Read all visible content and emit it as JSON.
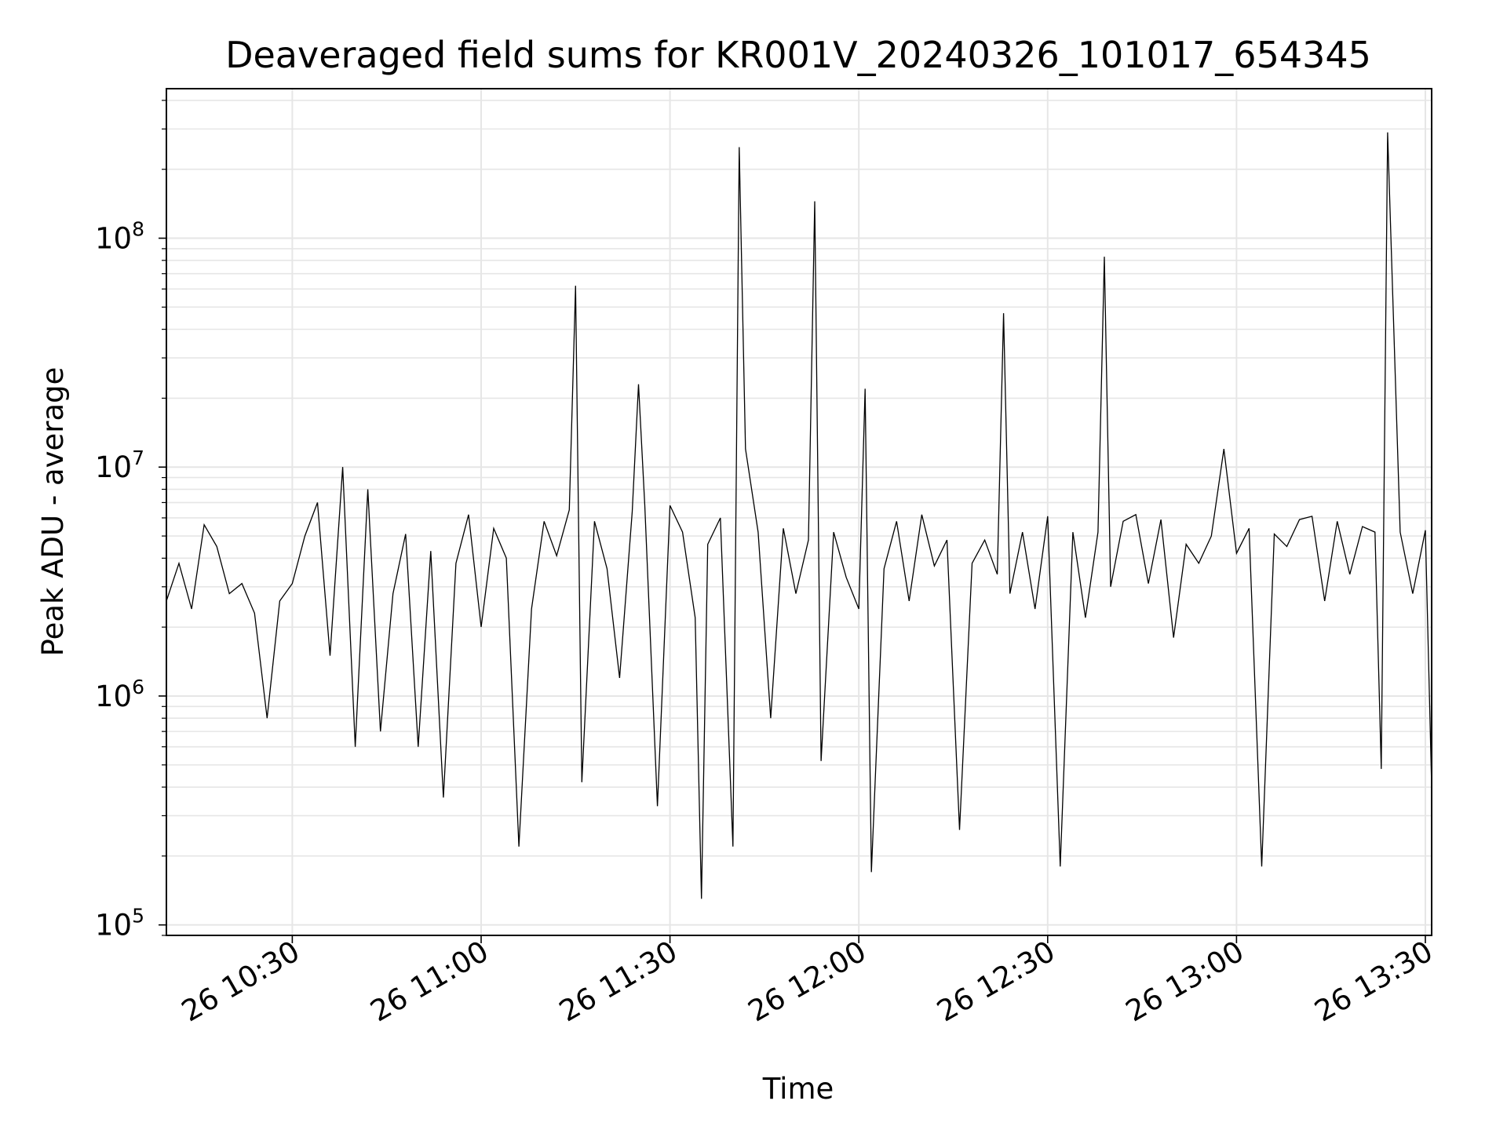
{
  "chart_data": {
    "type": "line",
    "title": "Deaveraged field sums for KR001V_20240326_101017_654345",
    "xlabel": "Time",
    "ylabel": "Peak ADU - average",
    "yscale": "log",
    "ylim": [
      90000,
      450000000
    ],
    "xlim": [
      "26 10:10",
      "26 13:31"
    ],
    "grid": true,
    "line_color": "#000000",
    "x_ticks": [
      "26 10:30",
      "26 11:00",
      "26 11:30",
      "26 12:00",
      "26 12:30",
      "26 13:00",
      "26 13:30"
    ],
    "y_ticks": [
      {
        "value": 100000,
        "base": "10",
        "exp": "5"
      },
      {
        "value": 1000000,
        "base": "10",
        "exp": "6"
      },
      {
        "value": 10000000,
        "base": "10",
        "exp": "7"
      },
      {
        "value": 100000000,
        "base": "10",
        "exp": "8"
      }
    ],
    "series": [
      {
        "x": [
          "26 10:10",
          "26 10:12",
          "26 10:14",
          "26 10:16",
          "26 10:18",
          "26 10:20",
          "26 10:22",
          "26 10:24",
          "26 10:26",
          "26 10:28",
          "26 10:30",
          "26 10:32",
          "26 10:34",
          "26 10:36",
          "26 10:38",
          "26 10:40",
          "26 10:42",
          "26 10:44",
          "26 10:46",
          "26 10:48",
          "26 10:50",
          "26 10:52",
          "26 10:54",
          "26 10:56",
          "26 10:58",
          "26 11:00",
          "26 11:02",
          "26 11:04",
          "26 11:06",
          "26 11:08",
          "26 11:10",
          "26 11:12",
          "26 11:14",
          "26 11:15",
          "26 11:16",
          "26 11:18",
          "26 11:20",
          "26 11:22",
          "26 11:24",
          "26 11:25",
          "26 11:26",
          "26 11:28",
          "26 11:30",
          "26 11:32",
          "26 11:34",
          "26 11:35",
          "26 11:36",
          "26 11:38",
          "26 11:40",
          "26 11:41",
          "26 11:42",
          "26 11:44",
          "26 11:46",
          "26 11:48",
          "26 11:50",
          "26 11:52",
          "26 11:53",
          "26 11:54",
          "26 11:56",
          "26 11:58",
          "26 12:00",
          "26 12:01",
          "26 12:02",
          "26 12:04",
          "26 12:06",
          "26 12:08",
          "26 12:10",
          "26 12:12",
          "26 12:14",
          "26 12:16",
          "26 12:18",
          "26 12:20",
          "26 12:22",
          "26 12:23",
          "26 12:24",
          "26 12:26",
          "26 12:28",
          "26 12:30",
          "26 12:32",
          "26 12:34",
          "26 12:36",
          "26 12:38",
          "26 12:39",
          "26 12:40",
          "26 12:42",
          "26 12:44",
          "26 12:46",
          "26 12:48",
          "26 12:50",
          "26 12:52",
          "26 12:54",
          "26 12:56",
          "26 12:58",
          "26 13:00",
          "26 13:02",
          "26 13:04",
          "26 13:06",
          "26 13:08",
          "26 13:10",
          "26 13:12",
          "26 13:14",
          "26 13:16",
          "26 13:18",
          "26 13:20",
          "26 13:22",
          "26 13:23",
          "26 13:24",
          "26 13:26",
          "26 13:28",
          "26 13:30",
          "26 13:31"
        ],
        "values": [
          2600000,
          3800000,
          2400000,
          5600000,
          4500000,
          2800000,
          3100000,
          2300000,
          800000,
          2600000,
          3100000,
          5000000,
          7000000,
          1500000,
          10000000,
          600000,
          8000000,
          700000,
          2800000,
          5100000,
          600000,
          4300000,
          360000,
          3800000,
          6200000,
          2000000,
          5400000,
          4000000,
          220000,
          2400000,
          5800000,
          4100000,
          6500000,
          62000000,
          420000,
          5800000,
          3600000,
          1200000,
          6400000,
          23000000,
          6800000,
          330000,
          6800000,
          5200000,
          2200000,
          130000,
          4600000,
          6000000,
          220000,
          250000000,
          12000000,
          5200000,
          800000,
          5400000,
          2800000,
          4800000,
          145000000,
          520000,
          5200000,
          3300000,
          2400000,
          22000000,
          170000,
          3600000,
          5800000,
          2600000,
          6200000,
          3700000,
          4800000,
          260000,
          3800000,
          4800000,
          3400000,
          47000000,
          2800000,
          5200000,
          2400000,
          6100000,
          180000,
          5200000,
          2200000,
          5200000,
          83000000,
          3000000,
          5800000,
          6200000,
          3100000,
          5900000,
          1800000,
          4600000,
          3800000,
          5000000,
          12000000,
          4200000,
          5400000,
          180000,
          5100000,
          4500000,
          5900000,
          6100000,
          2600000,
          5800000,
          3400000,
          5500000,
          5200000,
          480000,
          290000000,
          5200000,
          2800000,
          5300000,
          400000
        ]
      }
    ]
  }
}
